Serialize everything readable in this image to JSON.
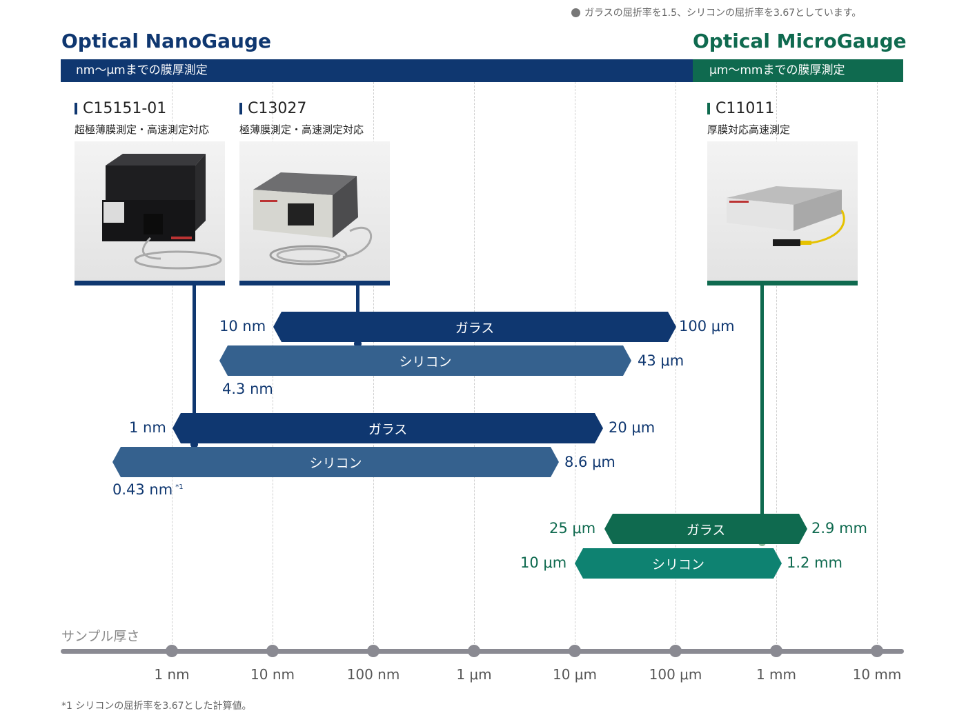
{
  "note": "ガラスの屈折率を1.5、シリコンの屈折率を3.67としています。",
  "nano": {
    "title": "Optical NanoGauge",
    "band": "nm〜μmまでの膜厚測定",
    "color": "#0f3770"
  },
  "micro": {
    "title": "Optical MicroGauge",
    "band": "μm〜mmまでの膜厚測定",
    "color": "#0f6a4f"
  },
  "products": [
    {
      "model": "C15151-01",
      "desc": "超極薄膜測定・高速測定対応",
      "image": "dark-spectrometer-unit-with-fiber-cable"
    },
    {
      "model": "C13027",
      "desc": "極薄膜測定・高速測定対応",
      "image": "grey-box-unit-with-coiled-fiber"
    },
    {
      "model": "C11011",
      "desc": "厚膜対応高速測定",
      "image": "flat-silver-unit-with-yellow-fiber"
    }
  ],
  "ranges": {
    "c13027_glass": {
      "label": "ガラス",
      "min": "10 nm",
      "max": "100 μm"
    },
    "c13027_silicon": {
      "label": "シリコン",
      "min": "4.3 nm",
      "max": "43 μm"
    },
    "c15151_glass": {
      "label": "ガラス",
      "min": "1 nm",
      "max": "20 μm"
    },
    "c15151_silicon": {
      "label": "シリコン",
      "min": "0.43 nm",
      "min_note": "*1",
      "max": "8.6 μm"
    },
    "c11011_glass": {
      "label": "ガラス",
      "min": "25 μm",
      "max": "2.9 mm"
    },
    "c11011_silicon": {
      "label": "シリコン",
      "min": "10 μm",
      "max": "1.2 mm"
    }
  },
  "axis": {
    "title": "サンプル厚さ",
    "ticks": [
      "1 nm",
      "10 nm",
      "100 nm",
      "1 μm",
      "10 μm",
      "100 μm",
      "1 mm",
      "10 mm"
    ]
  },
  "footnote": "*1  シリコンの屈折率を3.67とした計算値。"
}
